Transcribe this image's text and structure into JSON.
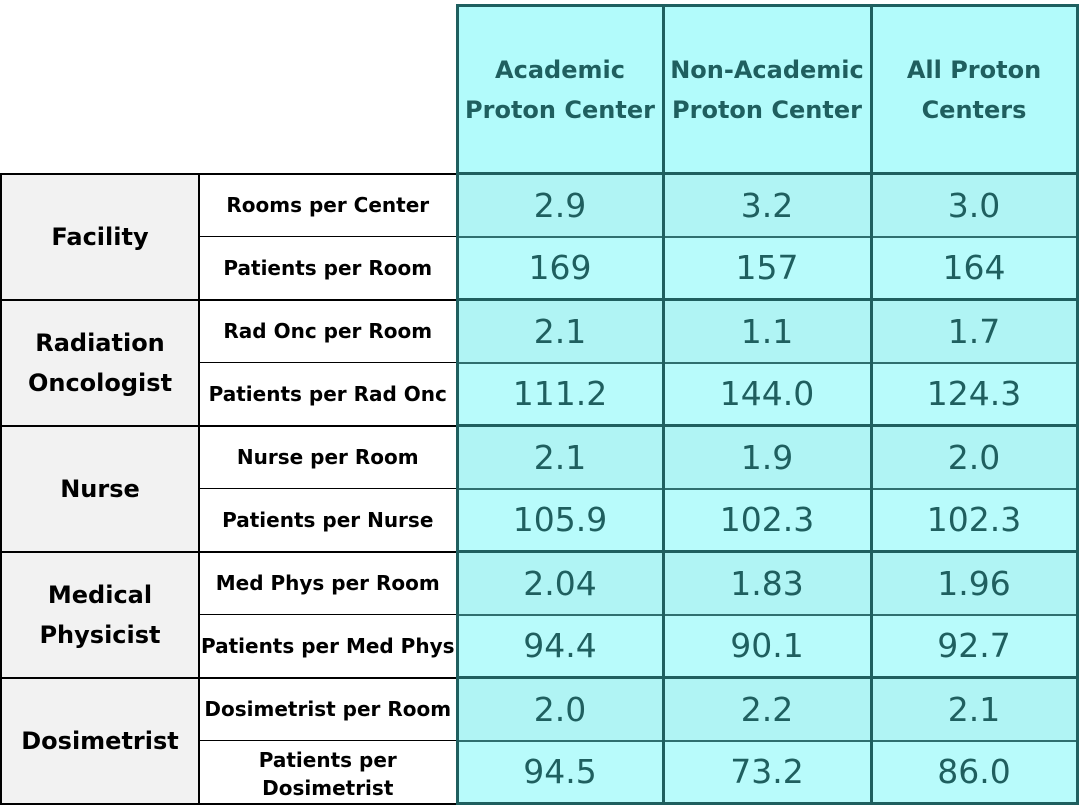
{
  "chart_data": {
    "type": "table",
    "columns": [
      "Academic\nProton Center",
      "Non-Academic\nProton Center",
      "All Proton\nCenters"
    ],
    "groups": [
      {
        "name": "Facility",
        "rows": [
          {
            "label": "Rooms per Center",
            "values": [
              "2.9",
              "3.2",
              "3.0"
            ]
          },
          {
            "label": "Patients per Room",
            "values": [
              "169",
              "157",
              "164"
            ]
          }
        ]
      },
      {
        "name": "Radiation\nOncologist",
        "rows": [
          {
            "label": "Rad Onc per Room",
            "values": [
              "2.1",
              "1.1",
              "1.7"
            ]
          },
          {
            "label": "Patients per Rad Onc",
            "values": [
              "111.2",
              "144.0",
              "124.3"
            ]
          }
        ]
      },
      {
        "name": "Nurse",
        "rows": [
          {
            "label": "Nurse per Room",
            "values": [
              "2.1",
              "1.9",
              "2.0"
            ]
          },
          {
            "label": "Patients per Nurse",
            "values": [
              "105.9",
              "102.3",
              "102.3"
            ]
          }
        ]
      },
      {
        "name": "Medical\nPhysicist",
        "rows": [
          {
            "label": "Med Phys per Room",
            "values": [
              "2.04",
              "1.83",
              "1.96"
            ]
          },
          {
            "label": "Patients per Med Phys",
            "values": [
              "94.4",
              "90.1",
              "92.7"
            ]
          }
        ]
      },
      {
        "name": "Dosimetrist",
        "rows": [
          {
            "label": "Dosimetrist per Room",
            "values": [
              "2.0",
              "2.2",
              "2.1"
            ]
          },
          {
            "label": "Patients per\nDosimetrist",
            "values": [
              "94.5",
              "73.2",
              "86.0"
            ]
          }
        ]
      }
    ]
  }
}
